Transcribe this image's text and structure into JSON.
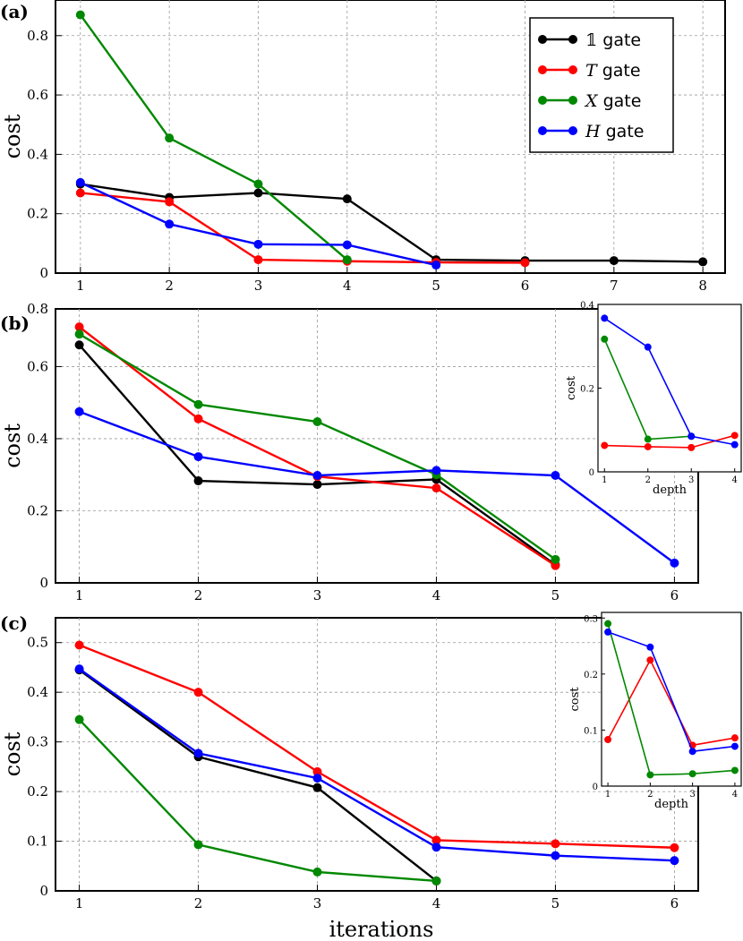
{
  "colors": {
    "identity": "#000000",
    "T": "#ff0000",
    "X": "#008800",
    "H": "#0000ff"
  },
  "legend": {
    "placement": "top-right",
    "entries": [
      {
        "symbol": "𝟙",
        "label": " gate",
        "color": "#000000"
      },
      {
        "symbol": "T",
        "label": " gate",
        "color": "#ff0000"
      },
      {
        "symbol": "X",
        "label": " gate",
        "color": "#008800"
      },
      {
        "symbol": "H",
        "label": " gate",
        "color": "#0000ff"
      }
    ]
  },
  "xlabel": "iterations",
  "chart_data": [
    {
      "panel": "(a)",
      "type": "line",
      "ylabel": "cost",
      "xlabel": "",
      "xlim": [
        0.72,
        8.25
      ],
      "ylim": [
        0,
        0.92
      ],
      "xticks": [
        1,
        2,
        3,
        4,
        5,
        6,
        7,
        8
      ],
      "yticks": [
        0,
        0.2,
        0.4,
        0.6,
        0.8
      ],
      "grid": true,
      "series": [
        {
          "key": "identity",
          "x": [
            1,
            2,
            3,
            4,
            5,
            6,
            7,
            8
          ],
          "y": [
            0.3,
            0.255,
            0.27,
            0.25,
            0.045,
            0.042,
            0.042,
            0.038
          ]
        },
        {
          "key": "T",
          "x": [
            1,
            2,
            3,
            4,
            5,
            6
          ],
          "y": [
            0.27,
            0.24,
            0.045,
            0.04,
            0.036,
            0.035
          ]
        },
        {
          "key": "X",
          "x": [
            1,
            2,
            3,
            4
          ],
          "y": [
            0.87,
            0.455,
            0.3,
            0.045
          ]
        },
        {
          "key": "H",
          "x": [
            1,
            2,
            3,
            4,
            5
          ],
          "y": [
            0.305,
            0.165,
            0.097,
            0.095,
            0.027
          ]
        }
      ]
    },
    {
      "panel": "(b)",
      "type": "line",
      "ylabel": "cost",
      "xlabel": "",
      "xlim": [
        0.8,
        6.2
      ],
      "ylim": [
        0,
        0.76
      ],
      "xticks": [
        1,
        2,
        3,
        4,
        5,
        6
      ],
      "yticks": [
        0,
        0.2,
        0.4,
        0.6
      ],
      "top_label": "0.8",
      "grid": true,
      "series": [
        {
          "key": "identity",
          "x": [
            1,
            2,
            3,
            4,
            5
          ],
          "y": [
            0.66,
            0.283,
            0.273,
            0.287,
            0.05
          ]
        },
        {
          "key": "T",
          "x": [
            1,
            2,
            3,
            4,
            5
          ],
          "y": [
            0.71,
            0.455,
            0.295,
            0.263,
            0.048
          ]
        },
        {
          "key": "X",
          "x": [
            1,
            2,
            3,
            4,
            5
          ],
          "y": [
            0.69,
            0.495,
            0.447,
            0.3,
            0.065
          ]
        },
        {
          "key": "H",
          "x": [
            1,
            2,
            3,
            4,
            5,
            6
          ],
          "y": [
            0.475,
            0.35,
            0.298,
            0.312,
            0.298,
            0.055
          ]
        }
      ],
      "inset": {
        "type": "line",
        "ylabel": "cost",
        "xlabel": "depth",
        "xlim": [
          0.85,
          4.15
        ],
        "ylim": [
          0,
          0.4
        ],
        "xticks": [
          1,
          2,
          3,
          4
        ],
        "yticks": [
          0,
          0.2,
          0.4
        ],
        "series": [
          {
            "key": "T",
            "x": [
              1,
              2,
              3,
              4
            ],
            "y": [
              0.063,
              0.06,
              0.058,
              0.087
            ]
          },
          {
            "key": "X",
            "x": [
              1,
              2,
              3
            ],
            "y": [
              0.317,
              0.078,
              0.085
            ]
          },
          {
            "key": "H",
            "x": [
              1,
              2,
              3,
              4
            ],
            "y": [
              0.367,
              0.298,
              0.085,
              0.065
            ]
          }
        ]
      }
    },
    {
      "panel": "(c)",
      "type": "line",
      "ylabel": "cost",
      "xlabel": "iterations",
      "xlim": [
        0.8,
        6.2
      ],
      "ylim": [
        0,
        0.55
      ],
      "xticks": [
        1,
        2,
        3,
        4,
        5,
        6
      ],
      "yticks": [
        0,
        0.1,
        0.2,
        0.3,
        0.4,
        0.5
      ],
      "grid": true,
      "series": [
        {
          "key": "identity",
          "x": [
            1,
            2,
            3,
            4
          ],
          "y": [
            0.445,
            0.27,
            0.208,
            0.02
          ]
        },
        {
          "key": "T",
          "x": [
            1,
            2,
            3,
            4,
            5,
            6
          ],
          "y": [
            0.495,
            0.4,
            0.24,
            0.102,
            0.095,
            0.087
          ]
        },
        {
          "key": "X",
          "x": [
            1,
            2,
            3,
            4
          ],
          "y": [
            0.345,
            0.093,
            0.038,
            0.02
          ]
        },
        {
          "key": "H",
          "x": [
            1,
            2,
            3,
            4,
            5,
            6
          ],
          "y": [
            0.447,
            0.277,
            0.227,
            0.088,
            0.071,
            0.061
          ]
        }
      ],
      "inset": {
        "type": "line",
        "ylabel": "cost",
        "xlabel": "depth",
        "xlim": [
          0.85,
          4.15
        ],
        "ylim": [
          0,
          0.31
        ],
        "xticks": [
          1,
          2,
          3,
          4
        ],
        "yticks": [
          0,
          0.1,
          0.2,
          0.3
        ],
        "series": [
          {
            "key": "T",
            "x": [
              1,
              2,
              3,
              4
            ],
            "y": [
              0.083,
              0.225,
              0.073,
              0.086
            ]
          },
          {
            "key": "X",
            "x": [
              1,
              2,
              3,
              4
            ],
            "y": [
              0.29,
              0.02,
              0.022,
              0.028
            ]
          },
          {
            "key": "H",
            "x": [
              1,
              2,
              3,
              4
            ],
            "y": [
              0.275,
              0.248,
              0.062,
              0.071
            ]
          }
        ]
      }
    }
  ]
}
